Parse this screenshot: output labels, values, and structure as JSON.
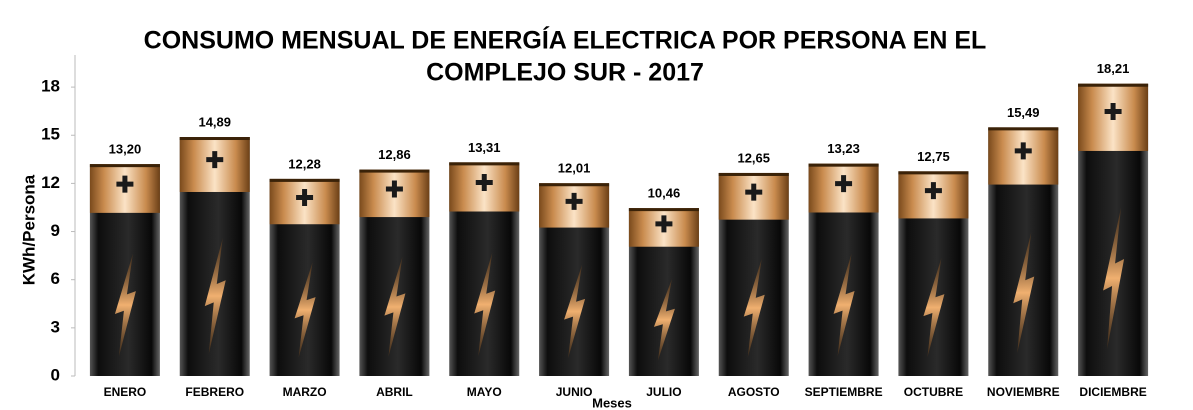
{
  "chart_data": {
    "type": "bar",
    "title": [
      "CONSUMO MENSUAL DE ENERGÍA ELECTRICA POR PERSONA EN EL",
      "COMPLEJO SUR  - 2017"
    ],
    "y_label": "KWh/Persona",
    "x_label": "Meses",
    "categories": [
      "ENERO",
      "FEBRERO",
      "MARZO",
      "ABRIL",
      "MAYO",
      "JUNIO",
      "JULIO",
      "AGOSTO",
      "SEPTIEMBRE",
      "OCTUBRE",
      "NOVIEMBRE",
      "DICIEMBRE"
    ],
    "values": [
      13.2,
      14.89,
      12.28,
      12.86,
      13.31,
      12.01,
      10.46,
      12.65,
      13.23,
      12.75,
      15.49,
      18.21
    ],
    "value_labels": [
      "13,20",
      "14,89",
      "12,28",
      "12,86",
      "13,31",
      "12,01",
      "10,46",
      "12,65",
      "13,23",
      "12,75",
      "15,49",
      "18,21"
    ],
    "color": "#1a1a1a",
    "ylim": [
      0,
      20
    ],
    "yticks": [
      0,
      3,
      6,
      9,
      12,
      15,
      18
    ],
    "grid": false
  }
}
